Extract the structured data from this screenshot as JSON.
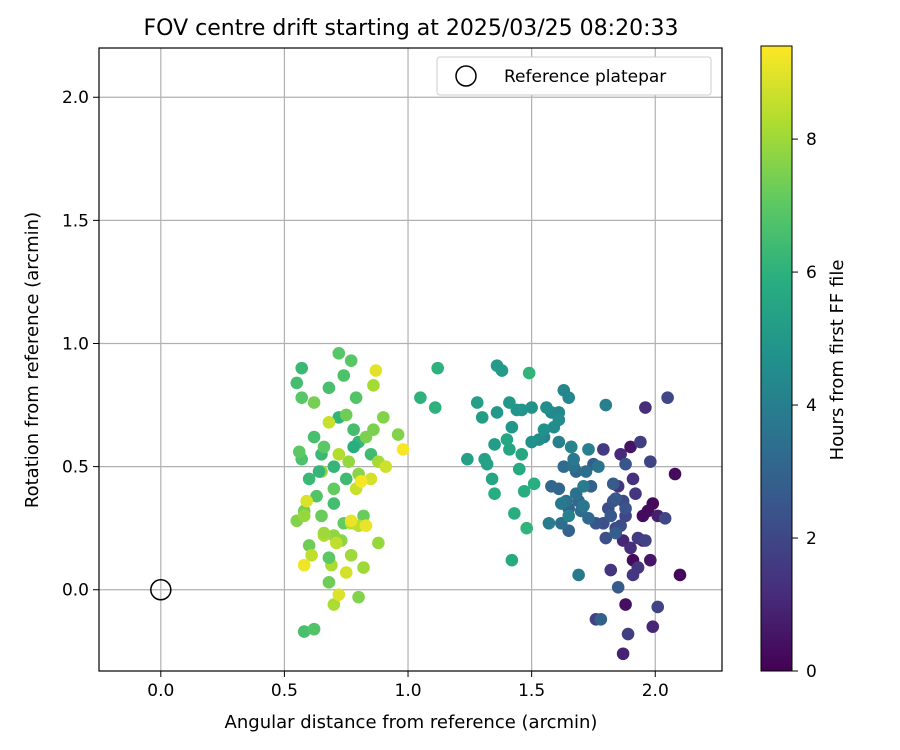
{
  "chart_data": {
    "type": "scatter",
    "title": "FOV centre drift starting at 2025/03/25 08:20:33",
    "xlabel": "Angular distance from reference (arcmin)",
    "ylabel": "Rotation from reference (arcmin)",
    "xlim": [
      -0.25,
      2.27
    ],
    "ylim": [
      -0.33,
      2.2
    ],
    "x_ticks": [
      0.0,
      0.5,
      1.0,
      1.5,
      2.0
    ],
    "x_tick_labels": [
      "0.0",
      "0.5",
      "1.0",
      "1.5",
      "2.0"
    ],
    "y_ticks": [
      0.0,
      0.5,
      1.0,
      1.5,
      2.0
    ],
    "y_tick_labels": [
      "0.0",
      "0.5",
      "1.0",
      "1.5",
      "2.0"
    ],
    "grid": true,
    "legend": {
      "placement": "top-right",
      "entries": [
        "Reference platepar"
      ]
    },
    "reference_point": {
      "name": "Reference platepar",
      "x": 0.0,
      "y": 0.0
    },
    "colorbar": {
      "label": "Hours from first FF file",
      "colormap": "viridis",
      "range": [
        0,
        9.4
      ],
      "ticks": [
        0,
        2,
        4,
        6,
        8
      ],
      "tick_labels": [
        "0",
        "2",
        "4",
        "6",
        "8"
      ]
    },
    "points": [
      [
        1.99,
        0.35,
        0.2
      ],
      [
        1.97,
        0.32,
        0.3
      ],
      [
        1.95,
        0.3,
        0.3
      ],
      [
        1.91,
        0.12,
        0.3
      ],
      [
        1.93,
        0.09,
        0.4
      ],
      [
        1.88,
        -0.06,
        0.4
      ],
      [
        2.08,
        0.47,
        0.3
      ],
      [
        2.1,
        0.06,
        0.2
      ],
      [
        1.9,
        0.58,
        0.5
      ],
      [
        1.98,
        0.12,
        0.6
      ],
      [
        1.95,
        0.2,
        0.7
      ],
      [
        2.01,
        0.3,
        0.8
      ],
      [
        1.87,
        -0.26,
        0.9
      ],
      [
        1.99,
        -0.15,
        1.0
      ],
      [
        1.87,
        0.2,
        1.0
      ],
      [
        1.86,
        0.55,
        1.1
      ],
      [
        1.9,
        0.17,
        1.2
      ],
      [
        1.96,
        0.74,
        1.2
      ],
      [
        1.91,
        0.45,
        1.3
      ],
      [
        1.82,
        0.08,
        1.4
      ],
      [
        1.93,
        0.09,
        1.4
      ],
      [
        1.85,
        0.42,
        1.4
      ],
      [
        1.92,
        0.39,
        1.5
      ],
      [
        1.91,
        0.06,
        1.5
      ],
      [
        1.79,
        0.57,
        1.6
      ],
      [
        1.93,
        0.21,
        1.6
      ],
      [
        1.89,
        -0.18,
        1.7
      ],
      [
        1.94,
        0.6,
        1.7
      ],
      [
        1.96,
        0.2,
        1.8
      ],
      [
        1.76,
        -0.12,
        1.8
      ],
      [
        2.01,
        -0.07,
        1.9
      ],
      [
        1.98,
        0.52,
        1.9
      ],
      [
        2.04,
        0.29,
        2.0
      ],
      [
        2.05,
        0.78,
        2.0
      ],
      [
        1.88,
        0.3,
        2.0
      ],
      [
        1.87,
        0.36,
        2.1
      ],
      [
        1.84,
        0.25,
        2.1
      ],
      [
        1.81,
        0.33,
        2.2
      ],
      [
        1.86,
        0.26,
        2.2
      ],
      [
        1.8,
        0.21,
        2.3
      ],
      [
        1.79,
        0.27,
        2.3
      ],
      [
        1.83,
        0.36,
        2.4
      ],
      [
        1.88,
        0.33,
        2.4
      ],
      [
        1.88,
        0.51,
        2.5
      ],
      [
        1.76,
        0.27,
        2.5
      ],
      [
        1.82,
        0.3,
        2.6
      ],
      [
        1.84,
        0.37,
        2.6
      ],
      [
        1.85,
        0.01,
        2.7
      ],
      [
        1.83,
        0.43,
        2.7
      ],
      [
        1.84,
        0.23,
        2.8
      ],
      [
        1.75,
        0.51,
        2.8
      ],
      [
        1.78,
        -0.12,
        2.9
      ],
      [
        1.74,
        0.42,
        2.9
      ],
      [
        1.65,
        0.33,
        3.0
      ],
      [
        1.65,
        0.24,
        3.0
      ],
      [
        1.68,
        0.48,
        3.0
      ],
      [
        1.58,
        0.42,
        3.1
      ],
      [
        1.61,
        0.41,
        3.1
      ],
      [
        1.69,
        0.36,
        3.2
      ],
      [
        1.73,
        0.29,
        3.2
      ],
      [
        1.63,
        0.5,
        3.3
      ],
      [
        1.7,
        0.32,
        3.3
      ],
      [
        1.72,
        0.48,
        3.4
      ],
      [
        1.62,
        0.27,
        3.4
      ],
      [
        1.67,
        0.5,
        3.5
      ],
      [
        1.68,
        0.39,
        3.5
      ],
      [
        1.64,
        0.36,
        3.6
      ],
      [
        1.77,
        0.5,
        3.6
      ],
      [
        1.71,
        0.34,
        3.7
      ],
      [
        1.67,
        0.53,
        3.7
      ],
      [
        1.62,
        0.35,
        3.8
      ],
      [
        1.69,
        0.06,
        3.8
      ],
      [
        1.57,
        0.27,
        3.9
      ],
      [
        1.71,
        0.42,
        3.9
      ],
      [
        1.8,
        0.75,
        4.0
      ],
      [
        1.73,
        0.57,
        4.0
      ],
      [
        1.65,
        0.3,
        4.1
      ],
      [
        1.66,
        0.58,
        4.1
      ],
      [
        1.61,
        0.6,
        4.1
      ],
      [
        1.55,
        0.62,
        4.2
      ],
      [
        1.66,
        0.58,
        4.2
      ],
      [
        1.63,
        0.81,
        4.3
      ],
      [
        1.65,
        0.78,
        4.3
      ],
      [
        1.61,
        0.72,
        4.4
      ],
      [
        1.58,
        0.72,
        4.4
      ],
      [
        1.59,
        0.66,
        4.5
      ],
      [
        1.61,
        0.69,
        4.5
      ],
      [
        1.56,
        0.74,
        4.6
      ],
      [
        1.53,
        0.61,
        4.6
      ],
      [
        1.55,
        0.65,
        4.7
      ],
      [
        1.5,
        0.6,
        4.7
      ],
      [
        1.5,
        0.74,
        4.8
      ],
      [
        1.46,
        0.73,
        4.8
      ],
      [
        1.44,
        0.73,
        4.9
      ],
      [
        1.42,
        0.66,
        4.9
      ],
      [
        1.41,
        0.76,
        5.0
      ],
      [
        1.36,
        0.72,
        5.0
      ],
      [
        1.38,
        0.89,
        5.1
      ],
      [
        1.36,
        0.91,
        5.1
      ],
      [
        1.35,
        0.59,
        5.2
      ],
      [
        1.3,
        0.7,
        5.2
      ],
      [
        1.28,
        0.76,
        5.3
      ],
      [
        1.24,
        0.53,
        5.3
      ],
      [
        1.32,
        0.51,
        5.4
      ],
      [
        1.31,
        0.53,
        5.4
      ],
      [
        1.41,
        0.57,
        5.5
      ],
      [
        1.34,
        0.45,
        5.5
      ],
      [
        1.4,
        0.61,
        5.6
      ],
      [
        1.46,
        0.55,
        5.6
      ],
      [
        1.42,
        0.12,
        5.7
      ],
      [
        1.45,
        0.49,
        5.7
      ],
      [
        1.47,
        0.4,
        5.8
      ],
      [
        1.35,
        0.39,
        5.8
      ],
      [
        1.43,
        0.31,
        5.9
      ],
      [
        1.51,
        0.43,
        5.9
      ],
      [
        1.12,
        0.9,
        6.0
      ],
      [
        1.11,
        0.74,
        6.0
      ],
      [
        1.05,
        0.78,
        6.0
      ],
      [
        1.49,
        0.88,
        6.1
      ],
      [
        1.48,
        0.25,
        6.1
      ],
      [
        0.72,
        0.7,
        6.1
      ],
      [
        0.7,
        0.5,
        6.2
      ],
      [
        0.8,
        0.6,
        6.2
      ],
      [
        0.65,
        0.55,
        6.3
      ],
      [
        0.6,
        0.45,
        6.3
      ],
      [
        0.75,
        0.45,
        6.4
      ],
      [
        0.85,
        0.55,
        6.4
      ],
      [
        0.7,
        0.35,
        6.5
      ],
      [
        0.78,
        0.65,
        6.5
      ],
      [
        0.62,
        0.62,
        6.6
      ],
      [
        0.68,
        0.82,
        6.6
      ],
      [
        0.74,
        0.87,
        6.7
      ],
      [
        0.57,
        0.53,
        6.7
      ],
      [
        0.63,
        0.38,
        6.8
      ],
      [
        0.79,
        0.78,
        6.8
      ],
      [
        0.72,
        0.96,
        6.9
      ],
      [
        0.77,
        0.93,
        6.9
      ],
      [
        0.56,
        0.56,
        7.0
      ],
      [
        0.66,
        0.58,
        7.0
      ],
      [
        0.7,
        0.41,
        7.1
      ],
      [
        0.74,
        0.27,
        7.1
      ],
      [
        0.82,
        0.3,
        7.2
      ],
      [
        0.65,
        0.3,
        7.2
      ],
      [
        0.68,
        0.03,
        7.3
      ],
      [
        0.6,
        0.18,
        7.3
      ],
      [
        0.58,
        0.32,
        7.4
      ],
      [
        0.62,
        0.76,
        7.4
      ],
      [
        0.83,
        0.62,
        7.5
      ],
      [
        0.86,
        0.65,
        7.5
      ],
      [
        0.9,
        0.7,
        7.6
      ],
      [
        0.55,
        0.28,
        7.6
      ],
      [
        0.73,
        0.2,
        7.7
      ],
      [
        0.8,
        0.47,
        7.7
      ],
      [
        0.65,
        0.48,
        7.8
      ],
      [
        0.7,
        0.22,
        7.8
      ],
      [
        0.76,
        0.52,
        7.9
      ],
      [
        0.58,
        0.3,
        7.9
      ],
      [
        0.82,
        0.09,
        8.0
      ],
      [
        0.77,
        0.14,
        8.0
      ],
      [
        0.88,
        0.52,
        8.1
      ],
      [
        0.86,
        0.83,
        8.1
      ],
      [
        0.69,
        0.1,
        8.2
      ],
      [
        0.7,
        -0.06,
        8.2
      ],
      [
        0.77,
        0.27,
        8.3
      ],
      [
        0.66,
        0.22,
        8.3
      ],
      [
        0.8,
        0.26,
        8.4
      ],
      [
        0.71,
        0.19,
        8.5
      ],
      [
        0.61,
        0.14,
        8.5
      ],
      [
        0.68,
        0.68,
        8.6
      ],
      [
        0.79,
        0.41,
        8.6
      ],
      [
        0.91,
        0.5,
        8.7
      ],
      [
        0.85,
        0.45,
        8.8
      ],
      [
        0.75,
        0.07,
        8.8
      ],
      [
        0.72,
        -0.02,
        8.9
      ],
      [
        0.59,
        0.36,
        8.9
      ],
      [
        0.87,
        0.89,
        9.0
      ],
      [
        0.77,
        0.28,
        9.1
      ],
      [
        0.83,
        0.26,
        9.1
      ],
      [
        0.58,
        0.1,
        9.2
      ],
      [
        0.98,
        0.57,
        9.3
      ],
      [
        0.81,
        0.44,
        9.3
      ],
      [
        0.96,
        0.63,
        7.6
      ],
      [
        0.68,
        0.13,
        7.0
      ],
      [
        0.58,
        -0.17,
        6.6
      ],
      [
        0.62,
        -0.16,
        6.8
      ],
      [
        0.55,
        0.84,
        6.5
      ],
      [
        0.57,
        0.78,
        6.9
      ],
      [
        0.57,
        0.9,
        6.3
      ],
      [
        0.64,
        0.48,
        6.2
      ],
      [
        0.78,
        0.58,
        5.9
      ],
      [
        0.66,
        0.23,
        8.0
      ],
      [
        0.72,
        0.55,
        8.3
      ],
      [
        0.75,
        0.71,
        7.3
      ],
      [
        0.8,
        -0.03,
        7.6
      ],
      [
        0.88,
        0.19,
        7.9
      ]
    ]
  }
}
